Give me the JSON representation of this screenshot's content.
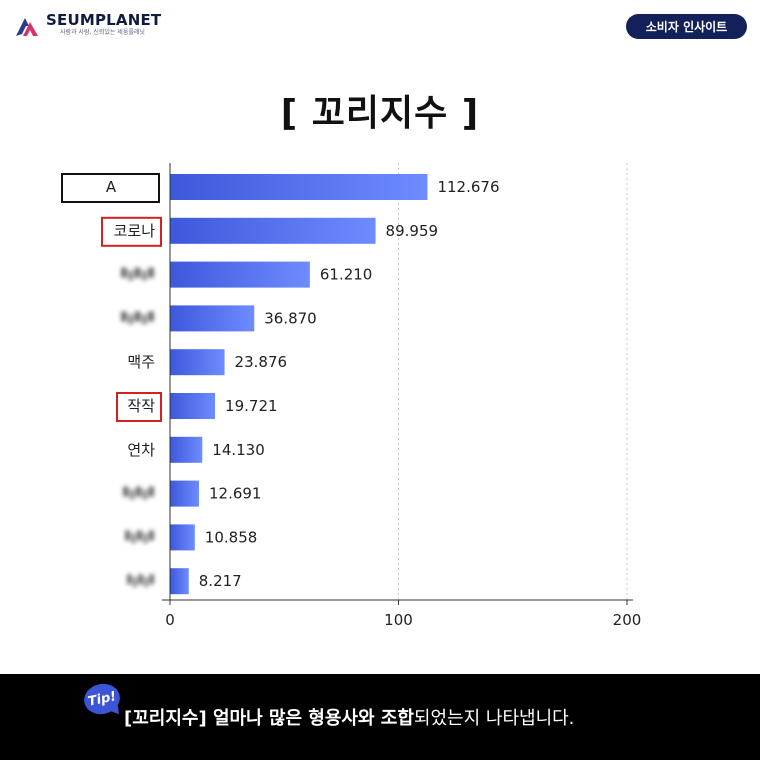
{
  "header": {
    "brand_name": "SEUMPLANET",
    "brand_tagline": "사람과 사람, 신뢰있는 세움플래닛",
    "badge_label": "소비자 인사이트"
  },
  "title": "[ 꼬리지수 ]",
  "colors": {
    "bar_start": "#3d58db",
    "bar_end": "#6e8cff",
    "badge_bg": "#13215a",
    "highlight_box": "#d42020",
    "footer_bg": "#000000"
  },
  "chart_data": {
    "type": "bar",
    "orientation": "horizontal",
    "categories": [
      "A",
      "코로나",
      "",
      "",
      "맥주",
      "작작",
      "연차",
      "",
      "",
      ""
    ],
    "category_style": [
      "boxed-black",
      "boxed-red",
      "blurred",
      "blurred",
      "plain",
      "boxed-red",
      "plain",
      "blurred",
      "blurred",
      "blurred"
    ],
    "values": [
      112.676,
      89.959,
      61.21,
      36.87,
      23.876,
      19.721,
      14.13,
      12.691,
      10.858,
      8.217
    ],
    "value_labels": [
      "112.676",
      "89.959",
      "61.210",
      "36.870",
      "23.876",
      "19.721",
      "14.130",
      "12.691",
      "10.858",
      "8.217"
    ],
    "xlim": [
      0,
      200
    ],
    "xticks": [
      0,
      100,
      200
    ],
    "grid": "dashed vertical at 100 and 200",
    "xlabel": "",
    "ylabel": ""
  },
  "footer": {
    "tip_label": "Tip!",
    "text_bold": "[꼬리지수]  얼마나 많은 형용사와 조합",
    "text_regular": "되었는지 나타냅니다."
  }
}
